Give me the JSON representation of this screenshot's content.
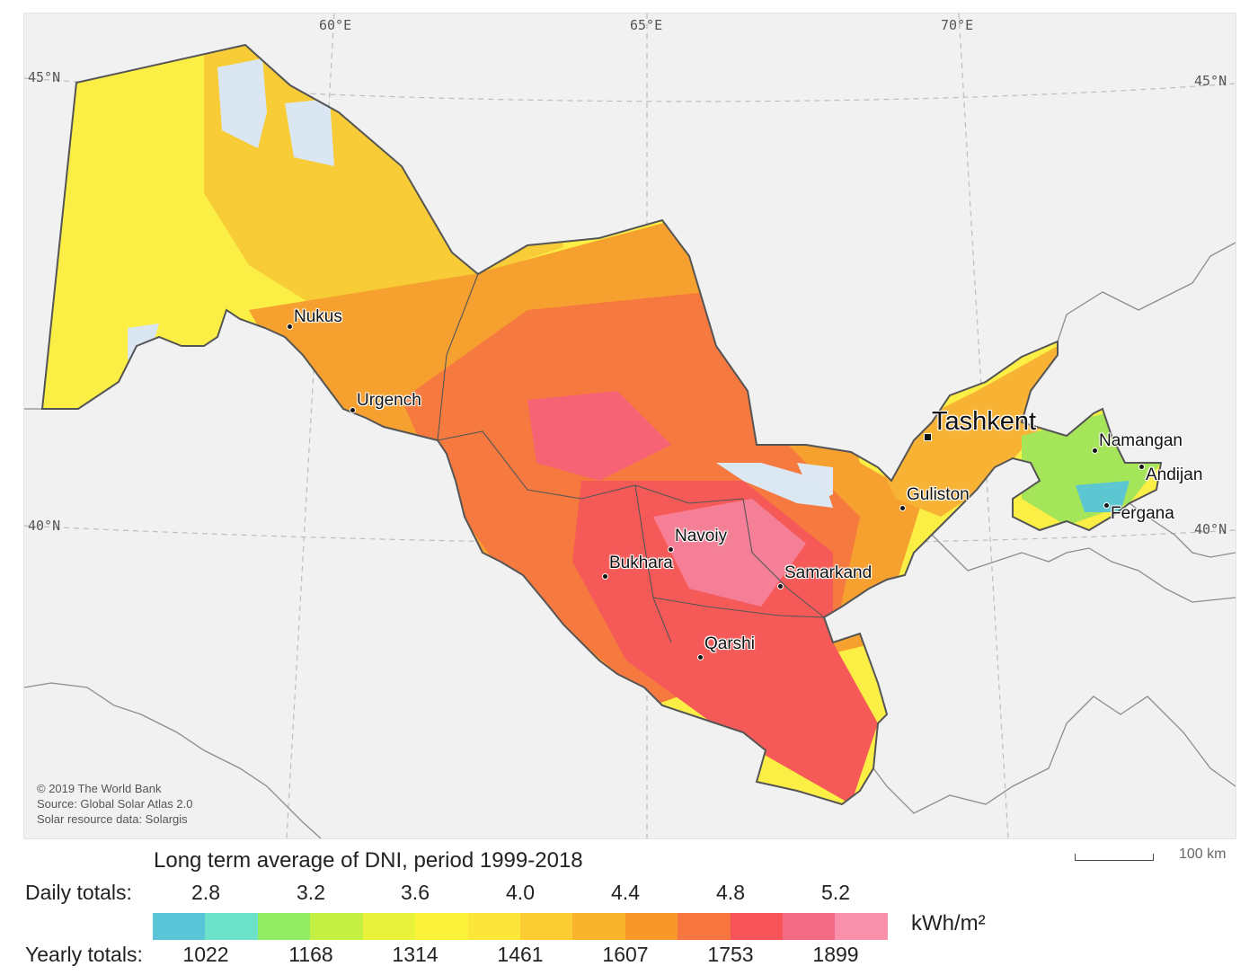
{
  "map": {
    "graticule": {
      "longitudes": [
        "60°E",
        "65°E",
        "70°E"
      ],
      "latitudes": [
        "45°N",
        "40°N"
      ]
    },
    "cities": [
      {
        "name": "Nukus",
        "capital": false
      },
      {
        "name": "Urgench",
        "capital": false
      },
      {
        "name": "Tashkent",
        "capital": true
      },
      {
        "name": "Namangan",
        "capital": false
      },
      {
        "name": "Andijan",
        "capital": false
      },
      {
        "name": "Guliston",
        "capital": false
      },
      {
        "name": "Fergana",
        "capital": false
      },
      {
        "name": "Navoiy",
        "capital": false
      },
      {
        "name": "Bukhara",
        "capital": false
      },
      {
        "name": "Samarkand",
        "capital": false
      },
      {
        "name": "Qarshi",
        "capital": false
      }
    ],
    "credits": [
      "© 2019 The World Bank",
      "Source: Global Solar Atlas 2.0",
      "Solar resource data: Solargis"
    ],
    "scale_label": "100 km"
  },
  "legend": {
    "title": "Long term average of DNI, period 1999-2018",
    "daily_label": "Daily totals:",
    "yearly_label": "Yearly totals:",
    "unit": "kWh/m²",
    "daily_ticks": [
      "2.8",
      "3.2",
      "3.6",
      "4.0",
      "4.4",
      "4.8",
      "5.2"
    ],
    "yearly_ticks": [
      "1022",
      "1168",
      "1314",
      "1461",
      "1607",
      "1753",
      "1899"
    ],
    "colors": [
      "#5bc5d8",
      "#6ce3c8",
      "#92ec64",
      "#c4f044",
      "#e9f23a",
      "#fbf23a",
      "#fde63a",
      "#fccd32",
      "#f9b32c",
      "#f8972a",
      "#f7763f",
      "#f65458",
      "#f46b86",
      "#f990ac"
    ]
  }
}
